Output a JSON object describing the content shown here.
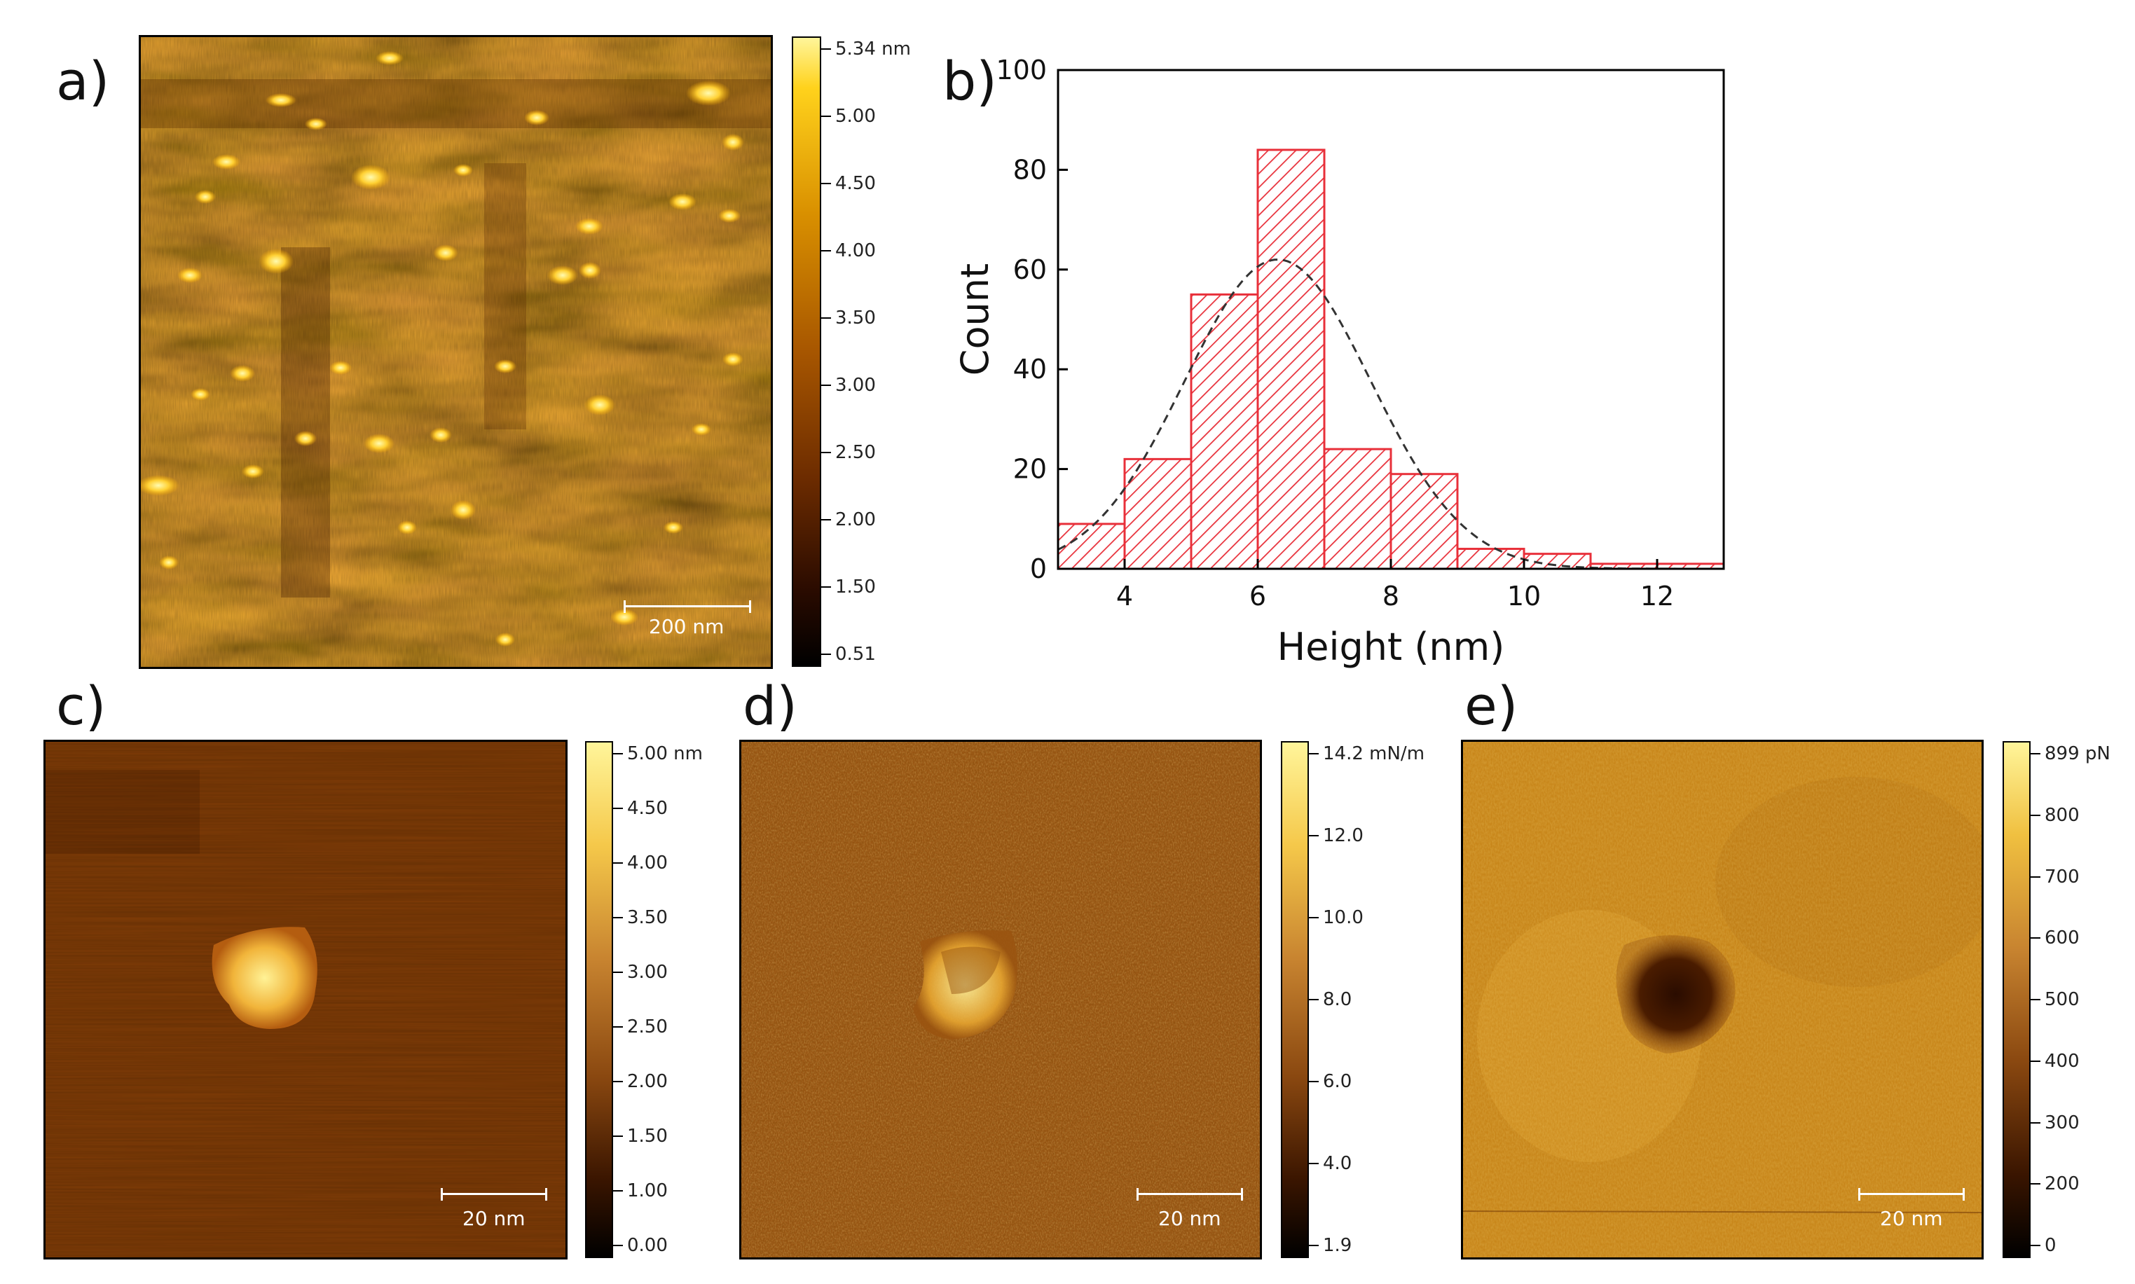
{
  "colors": {
    "afm_dark": "#120400",
    "afm_mid": "#8a3f00",
    "afm_bright": "#fff59a",
    "hist_red": "#e8303a",
    "fit_line": "#333333"
  },
  "panels": [
    {
      "id": "a",
      "letter": "a)",
      "scale_label": "200 nm",
      "colorbar_ticks": [
        "5.34 nm",
        "5.00",
        "4.50",
        "4.00",
        "3.50",
        "3.00",
        "2.50",
        "2.00",
        "1.50",
        "0.51"
      ]
    },
    {
      "id": "c",
      "letter": "c)",
      "scale_label": "20 nm",
      "colorbar_ticks": [
        "5.00 nm",
        "4.50",
        "4.00",
        "3.50",
        "3.00",
        "2.50",
        "2.00",
        "1.50",
        "1.00",
        "0.00"
      ]
    },
    {
      "id": "d",
      "letter": "d)",
      "scale_label": "20 nm",
      "colorbar_ticks": [
        "14.2 mN/m",
        "12.0",
        "10.0",
        "8.0",
        "6.0",
        "4.0",
        "1.9"
      ]
    },
    {
      "id": "e",
      "letter": "e)",
      "scale_label": "20 nm",
      "colorbar_ticks": [
        "899 pN",
        "800",
        "700",
        "600",
        "500",
        "400",
        "300",
        "200",
        "0"
      ]
    }
  ],
  "chart_data": {
    "type": "bar",
    "panel_letter": "b)",
    "title": "",
    "xlabel": "Height (nm)",
    "ylabel": "Count",
    "xlim": [
      3,
      13
    ],
    "ylim": [
      0,
      100
    ],
    "x_ticks": [
      4,
      6,
      8,
      10,
      12
    ],
    "y_ticks": [
      0,
      20,
      40,
      60,
      80,
      100
    ],
    "bins": [
      {
        "x0": 3,
        "x1": 4,
        "count": 9
      },
      {
        "x0": 4,
        "x1": 5,
        "count": 22
      },
      {
        "x0": 5,
        "x1": 6,
        "count": 55
      },
      {
        "x0": 6,
        "x1": 7,
        "count": 84
      },
      {
        "x0": 7,
        "x1": 8,
        "count": 24
      },
      {
        "x0": 8,
        "x1": 9,
        "count": 19
      },
      {
        "x0": 9,
        "x1": 10,
        "count": 4
      },
      {
        "x0": 10,
        "x1": 11,
        "count": 3
      },
      {
        "x0": 11,
        "x1": 12,
        "count": 1
      },
      {
        "x0": 12,
        "x1": 13,
        "count": 1
      }
    ],
    "fit": {
      "type": "gaussian",
      "mean": 6.3,
      "sigma": 1.4,
      "peak": 62
    }
  }
}
